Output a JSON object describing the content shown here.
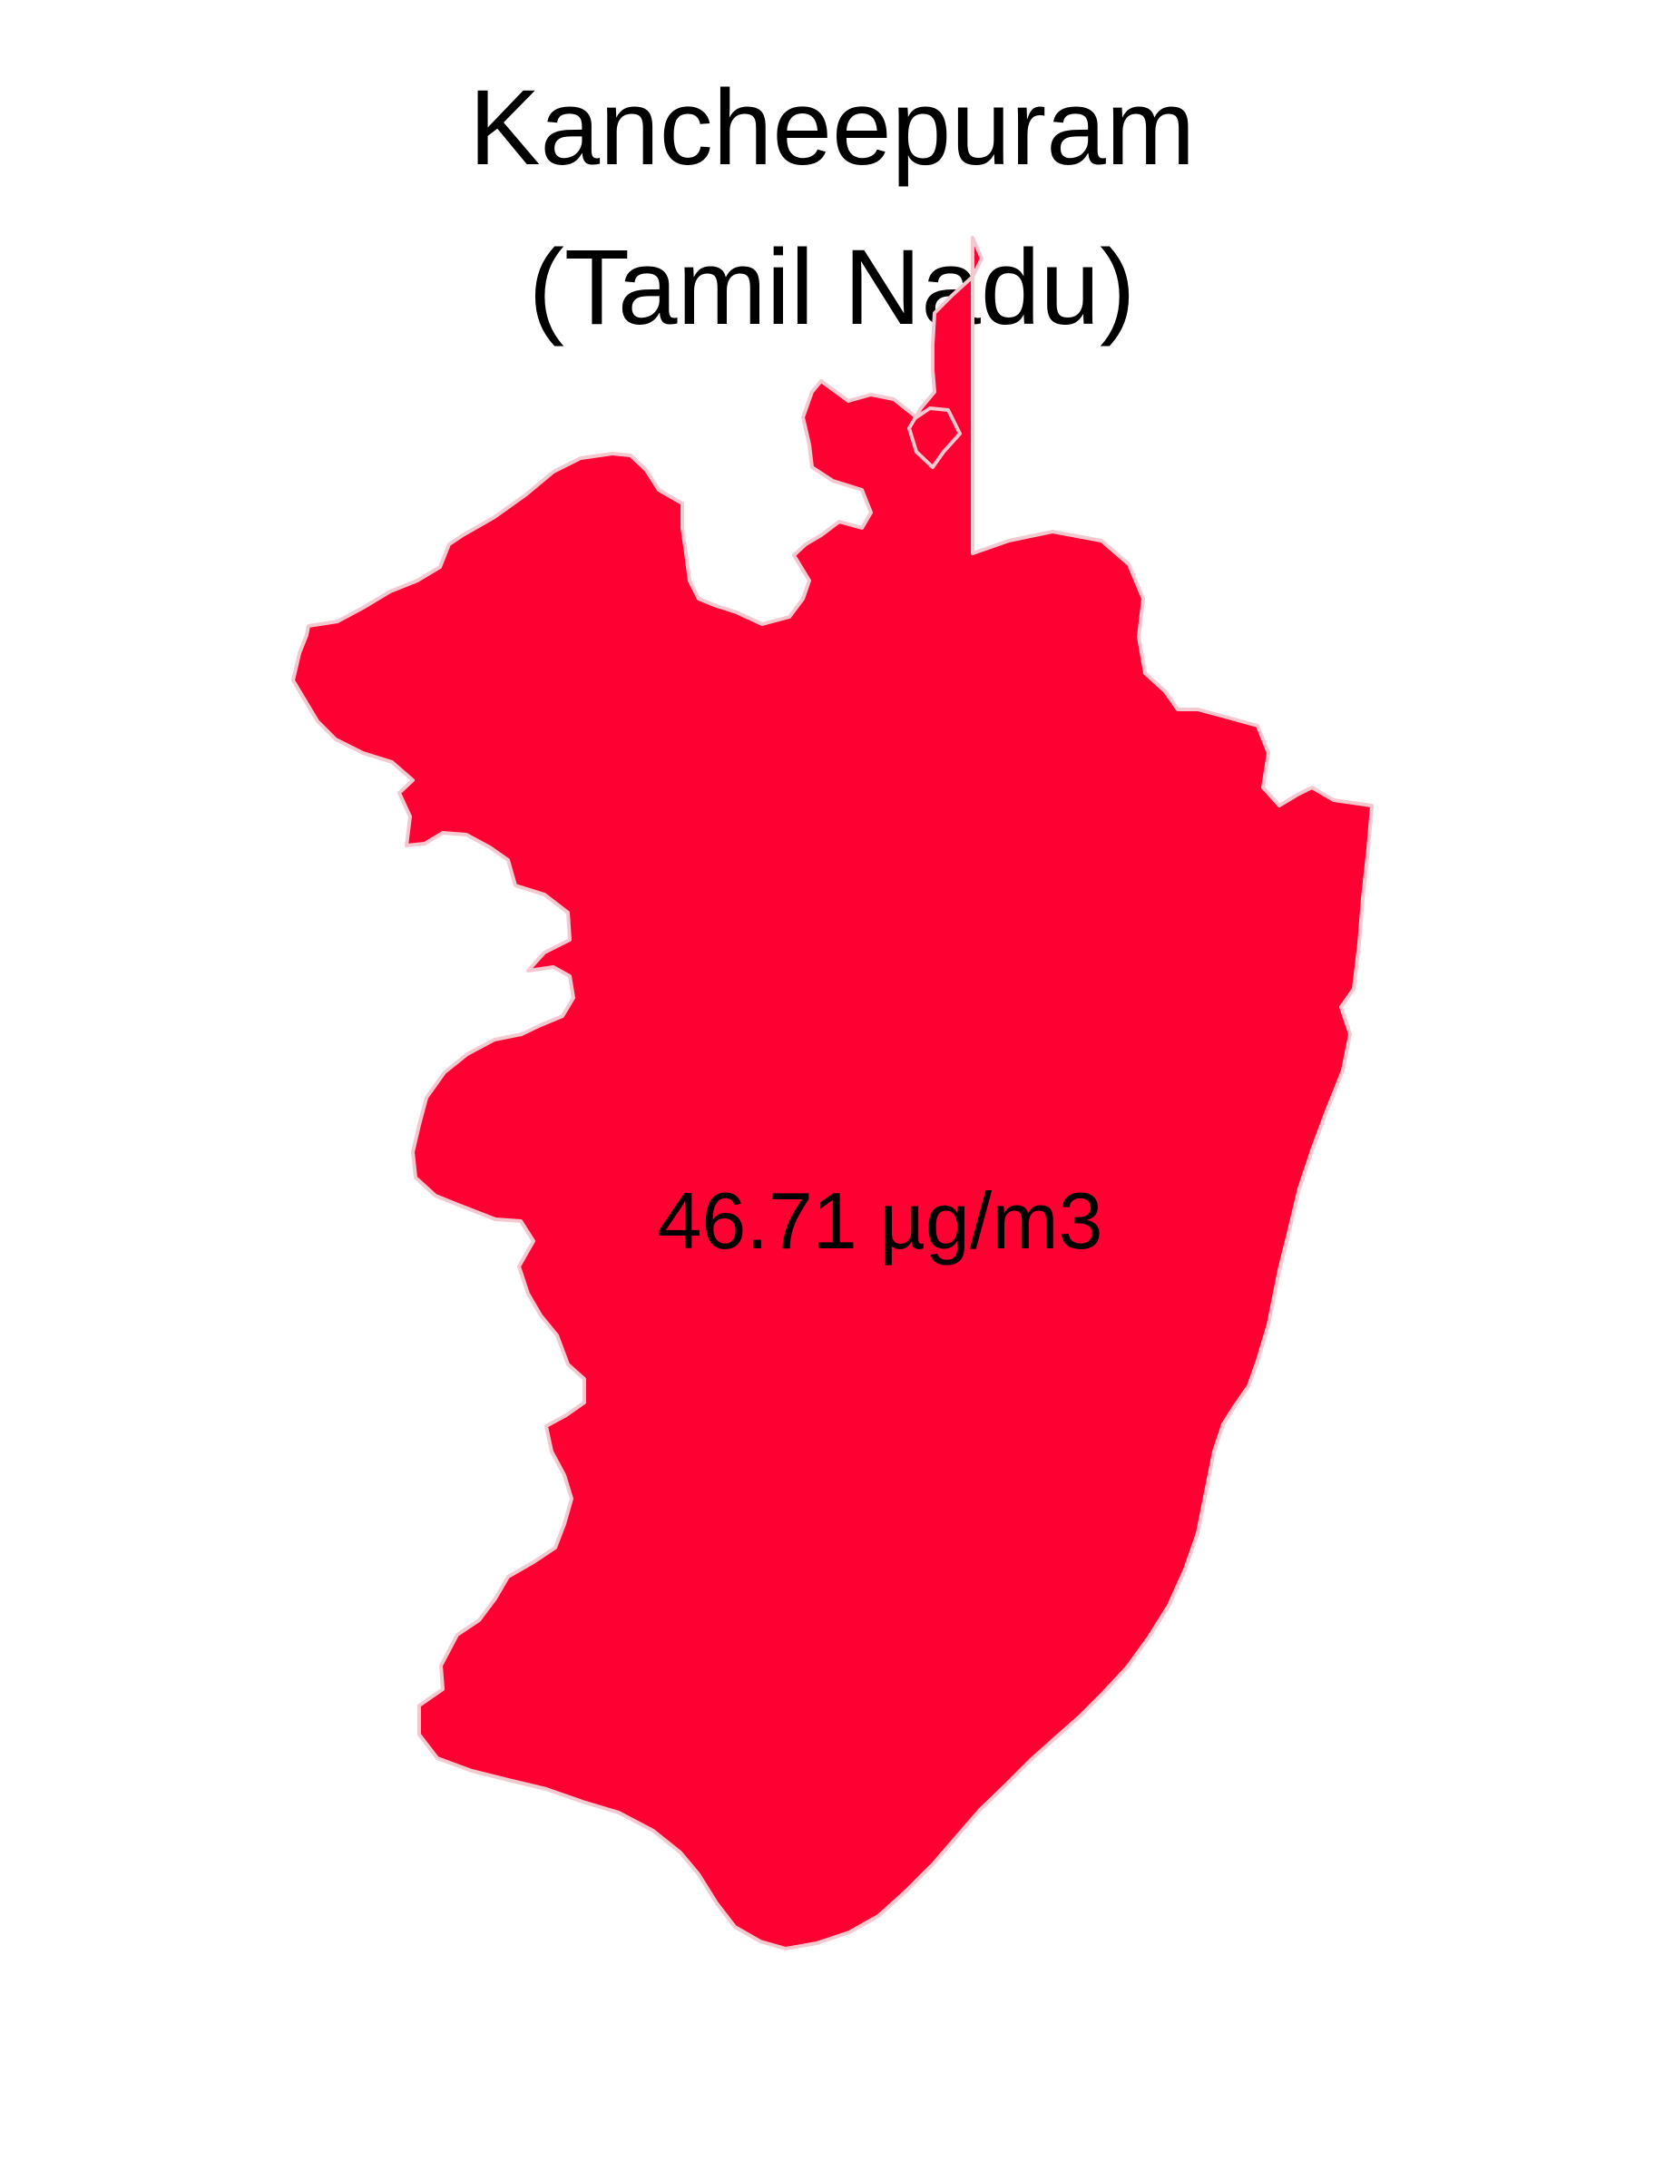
{
  "title": {
    "district": "Kancheepuram",
    "state": "(Tamil Nadu)"
  },
  "map": {
    "fill_color": "#ff0033",
    "value_label": "46.71 µg/m3"
  }
}
